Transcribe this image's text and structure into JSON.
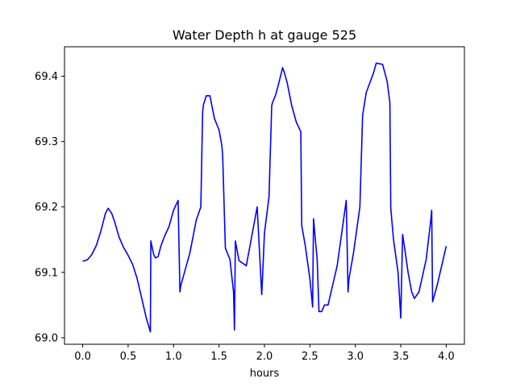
{
  "chart_data": {
    "type": "line",
    "title": "Water Depth h at gauge 525",
    "xlabel": "hours",
    "ylabel": "",
    "xlim": [
      -0.2,
      4.2
    ],
    "ylim": [
      68.99,
      69.445
    ],
    "grid": false,
    "x_ticks": [
      "0.0",
      "0.5",
      "1.0",
      "1.5",
      "2.0",
      "2.5",
      "3.0",
      "3.5",
      "4.0"
    ],
    "y_ticks": [
      "69.0",
      "69.1",
      "69.2",
      "69.3",
      "69.4"
    ],
    "series": [
      {
        "color": "#0000ff",
        "x": [
          0.0,
          0.05,
          0.1,
          0.15,
          0.2,
          0.25,
          0.28,
          0.32,
          0.35,
          0.4,
          0.45,
          0.5,
          0.55,
          0.6,
          0.65,
          0.7,
          0.745,
          0.75,
          0.78,
          0.8,
          0.83,
          0.86,
          0.9,
          0.95,
          1.0,
          1.05,
          1.07,
          1.08,
          1.12,
          1.18,
          1.25,
          1.3,
          1.32,
          1.33,
          1.36,
          1.4,
          1.45,
          1.5,
          1.53,
          1.54,
          1.57,
          1.62,
          1.66,
          1.67,
          1.68,
          1.72,
          1.75,
          1.8,
          1.84,
          1.88,
          1.92,
          1.97,
          1.975,
          2.0,
          2.05,
          2.08,
          2.09,
          2.12,
          2.15,
          2.2,
          2.22,
          2.25,
          2.3,
          2.35,
          2.4,
          2.41,
          2.45,
          2.5,
          2.53,
          2.54,
          2.56,
          2.58,
          2.6,
          2.63,
          2.66,
          2.7,
          2.8,
          2.9,
          2.92,
          2.93,
          2.98,
          3.05,
          3.08,
          3.12,
          3.2,
          3.23,
          3.3,
          3.35,
          3.38,
          3.39,
          3.42,
          3.47,
          3.5,
          3.52,
          3.55,
          3.58,
          3.62,
          3.65,
          3.7,
          3.78,
          3.83,
          3.84,
          3.85,
          3.9,
          4.0
        ],
        "y": [
          69.117,
          69.119,
          69.127,
          69.141,
          69.163,
          69.19,
          69.198,
          69.19,
          69.178,
          69.154,
          69.138,
          69.126,
          69.112,
          69.09,
          69.06,
          69.03,
          69.009,
          69.148,
          69.128,
          69.122,
          69.124,
          69.14,
          69.155,
          69.17,
          69.195,
          69.21,
          69.07,
          69.08,
          69.1,
          69.13,
          69.18,
          69.2,
          69.346,
          69.357,
          69.37,
          69.37,
          69.335,
          69.318,
          69.295,
          69.28,
          69.137,
          69.12,
          69.07,
          69.012,
          69.148,
          69.118,
          69.115,
          69.11,
          69.14,
          69.17,
          69.2,
          69.066,
          69.08,
          69.16,
          69.215,
          69.355,
          69.36,
          69.37,
          69.385,
          69.413,
          69.405,
          69.39,
          69.355,
          69.33,
          69.315,
          69.172,
          69.14,
          69.09,
          69.047,
          69.182,
          69.15,
          69.12,
          69.04,
          69.04,
          69.05,
          69.05,
          69.11,
          69.21,
          69.07,
          69.09,
          69.13,
          69.2,
          69.34,
          69.375,
          69.405,
          69.42,
          69.418,
          69.392,
          69.36,
          69.198,
          69.15,
          69.1,
          69.03,
          69.158,
          69.13,
          69.1,
          69.07,
          69.06,
          69.07,
          69.12,
          69.18,
          69.195,
          69.055,
          69.08,
          69.14
        ]
      }
    ]
  }
}
